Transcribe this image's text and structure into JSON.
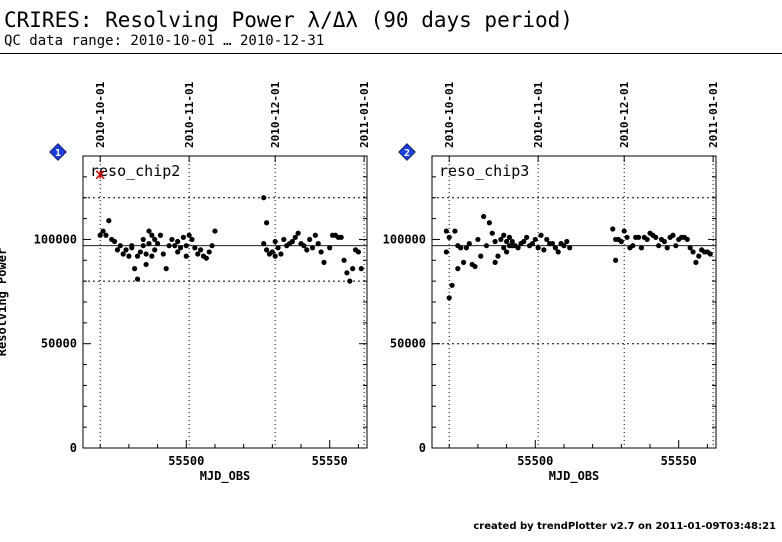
{
  "header": {
    "title": "CRIRES: Resolving Power λ/Δλ (90 days period)",
    "subtitle": "QC data range: 2010-10-01 … 2010-12-31"
  },
  "footer": {
    "credit": "created by trendPlotter v2.7 on 2011-01-09T03:48:21"
  },
  "colors": {
    "data": "#000000",
    "outlier": "#cc0000",
    "marker_fill": "#1a3fd9",
    "marker_text": "#ffffff"
  },
  "chart_data": [
    {
      "type": "scatter",
      "title": "reso_chip2",
      "marker": "1",
      "xlabel": "MJD_OBS",
      "ylabel": "Resolving Power",
      "xlim": [
        55464,
        55563
      ],
      "ylim": [
        0,
        140000
      ],
      "xticks": [
        55500,
        55550
      ],
      "yticks": [
        0,
        50000,
        100000
      ],
      "top_axis_dates": [
        {
          "label": "2010-10-01",
          "mjd": 55470
        },
        {
          "label": "2010-11-01",
          "mjd": 55501
        },
        {
          "label": "2010-12-01",
          "mjd": 55531
        },
        {
          "label": "2011-01-01",
          "mjd": 55562
        }
      ],
      "reference_line": 97000,
      "limit_lines": [
        80000,
        120000
      ],
      "grid": true,
      "outliers": [
        {
          "x": 55470,
          "y": 131000
        }
      ],
      "x": [
        55470,
        55471,
        55472,
        55473,
        55474,
        55475,
        55476,
        55477,
        55478,
        55479,
        55480,
        55481,
        55481,
        55482,
        55483,
        55483,
        55484,
        55485,
        55485,
        55486,
        55486,
        55487,
        55487,
        55488,
        55488,
        55489,
        55489,
        55490,
        55491,
        55492,
        55493,
        55494,
        55495,
        55496,
        55497,
        55497,
        55498,
        55499,
        55500,
        55500,
        55501,
        55502,
        55503,
        55504,
        55505,
        55506,
        55507,
        55508,
        55509,
        55510,
        55527,
        55527,
        55528,
        55528,
        55529,
        55530,
        55531,
        55531,
        55532,
        55533,
        55534,
        55535,
        55536,
        55537,
        55538,
        55539,
        55540,
        55541,
        55542,
        55543,
        55544,
        55545,
        55546,
        55547,
        55548,
        55550,
        55551,
        55552,
        55553,
        55554,
        55555,
        55556,
        55557,
        55558,
        55559,
        55560,
        55561
      ],
      "y": [
        102000,
        104000,
        102000,
        109000,
        100000,
        99000,
        95000,
        97000,
        93000,
        95000,
        92000,
        97000,
        96000,
        86000,
        92000,
        81000,
        94000,
        97000,
        100000,
        88000,
        93000,
        98000,
        104000,
        92000,
        102000,
        100000,
        95000,
        98000,
        102000,
        93000,
        86000,
        97000,
        100000,
        97000,
        94000,
        99000,
        96000,
        101000,
        97000,
        92000,
        102000,
        100000,
        96000,
        93000,
        95000,
        92000,
        91000,
        94000,
        97000,
        104000,
        120000,
        98000,
        108000,
        95000,
        93000,
        94000,
        99000,
        92000,
        96000,
        93000,
        100000,
        97000,
        98000,
        99000,
        101000,
        103000,
        98000,
        97000,
        95000,
        100000,
        96000,
        102000,
        98000,
        94000,
        89000,
        96000,
        102000,
        102000,
        101000,
        101000,
        90000,
        84000,
        80000,
        86000,
        95000,
        94000,
        86000
      ]
    },
    {
      "type": "scatter",
      "title": "reso_chip3",
      "marker": "2",
      "xlabel": "MJD_OBS",
      "ylabel": "",
      "xlim": [
        55464,
        55563
      ],
      "ylim": [
        0,
        140000
      ],
      "xticks": [
        55500,
        55550
      ],
      "yticks": [
        0,
        50000,
        100000
      ],
      "top_axis_dates": [
        {
          "label": "2010-10-01",
          "mjd": 55470
        },
        {
          "label": "2010-11-01",
          "mjd": 55501
        },
        {
          "label": "2010-12-01",
          "mjd": 55531
        },
        {
          "label": "2011-01-01",
          "mjd": 55562
        }
      ],
      "reference_line": 97000,
      "limit_lines": [
        50000,
        120000
      ],
      "grid": true,
      "outliers": [],
      "x": [
        55469,
        55469,
        55470,
        55470,
        55471,
        55472,
        55473,
        55473,
        55474,
        55475,
        55476,
        55477,
        55478,
        55479,
        55480,
        55481,
        55482,
        55483,
        55484,
        55485,
        55486,
        55486,
        55487,
        55488,
        55489,
        55489,
        55490,
        55490,
        55491,
        55491,
        55492,
        55492,
        55493,
        55494,
        55495,
        55496,
        55497,
        55498,
        55499,
        55500,
        55501,
        55502,
        55503,
        55504,
        55505,
        55506,
        55507,
        55508,
        55509,
        55510,
        55511,
        55512,
        55527,
        55528,
        55528,
        55529,
        55530,
        55531,
        55532,
        55533,
        55534,
        55535,
        55536,
        55537,
        55538,
        55539,
        55540,
        55541,
        55542,
        55543,
        55544,
        55545,
        55546,
        55547,
        55548,
        55549,
        55550,
        55551,
        55552,
        55553,
        55554,
        55555,
        55556,
        55557,
        55558,
        55559,
        55560,
        55561
      ],
      "y": [
        94000,
        104000,
        72000,
        101000,
        78000,
        104000,
        86000,
        97000,
        96000,
        89000,
        96000,
        98000,
        88000,
        87000,
        100000,
        92000,
        111000,
        97000,
        108000,
        103000,
        89000,
        99000,
        92000,
        100000,
        102000,
        96000,
        99000,
        94000,
        97000,
        101000,
        99000,
        97000,
        97000,
        96000,
        98000,
        99000,
        101000,
        97000,
        98000,
        100000,
        96000,
        102000,
        95000,
        100000,
        98000,
        98000,
        96000,
        94000,
        98000,
        97000,
        99000,
        96000,
        105000,
        100000,
        90000,
        100000,
        99000,
        104000,
        101000,
        96000,
        97000,
        101000,
        101000,
        96000,
        101000,
        100000,
        103000,
        102000,
        101000,
        97000,
        100000,
        99000,
        96000,
        101000,
        102000,
        97000,
        100000,
        101000,
        101000,
        100000,
        96000,
        94000,
        89000,
        92000,
        95000,
        94000,
        94000,
        93000
      ]
    }
  ]
}
